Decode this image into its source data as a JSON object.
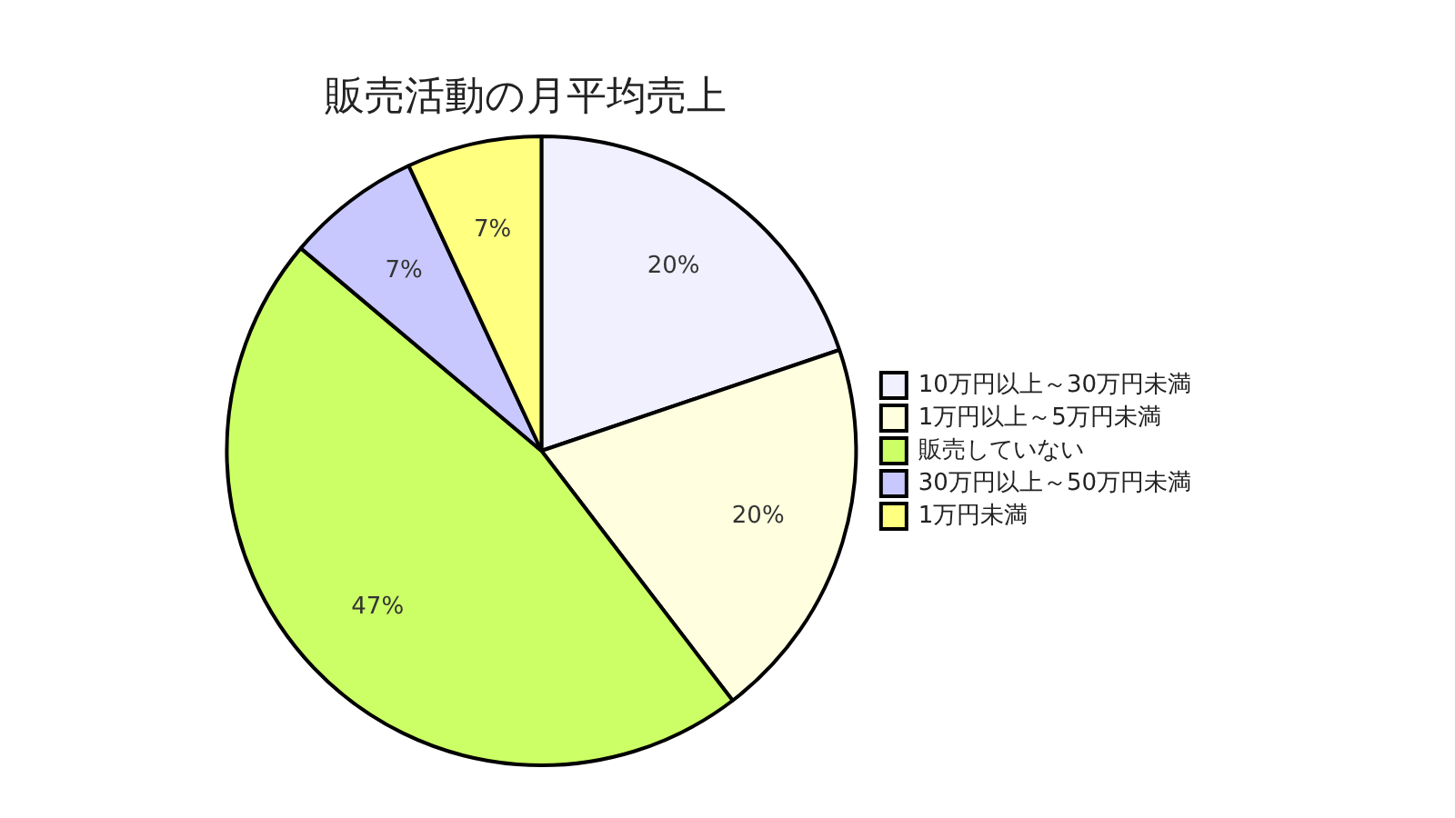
{
  "chart_data": {
    "type": "pie",
    "title": "販売活動の月平均売上",
    "categories": [
      "10万円以上～30万円未満",
      "1万円以上～5万円未満",
      "販売していない",
      "30万円以上～50万円未満",
      "1万円未満"
    ],
    "values": [
      20,
      20,
      47,
      7,
      7
    ],
    "value_labels": [
      "20%",
      "20%",
      "47%",
      "7%",
      "7%"
    ],
    "colors": [
      "#f0f0ff",
      "#ffffe0",
      "#ccff66",
      "#c8c8ff",
      "#ffff80"
    ],
    "legend": "right"
  }
}
